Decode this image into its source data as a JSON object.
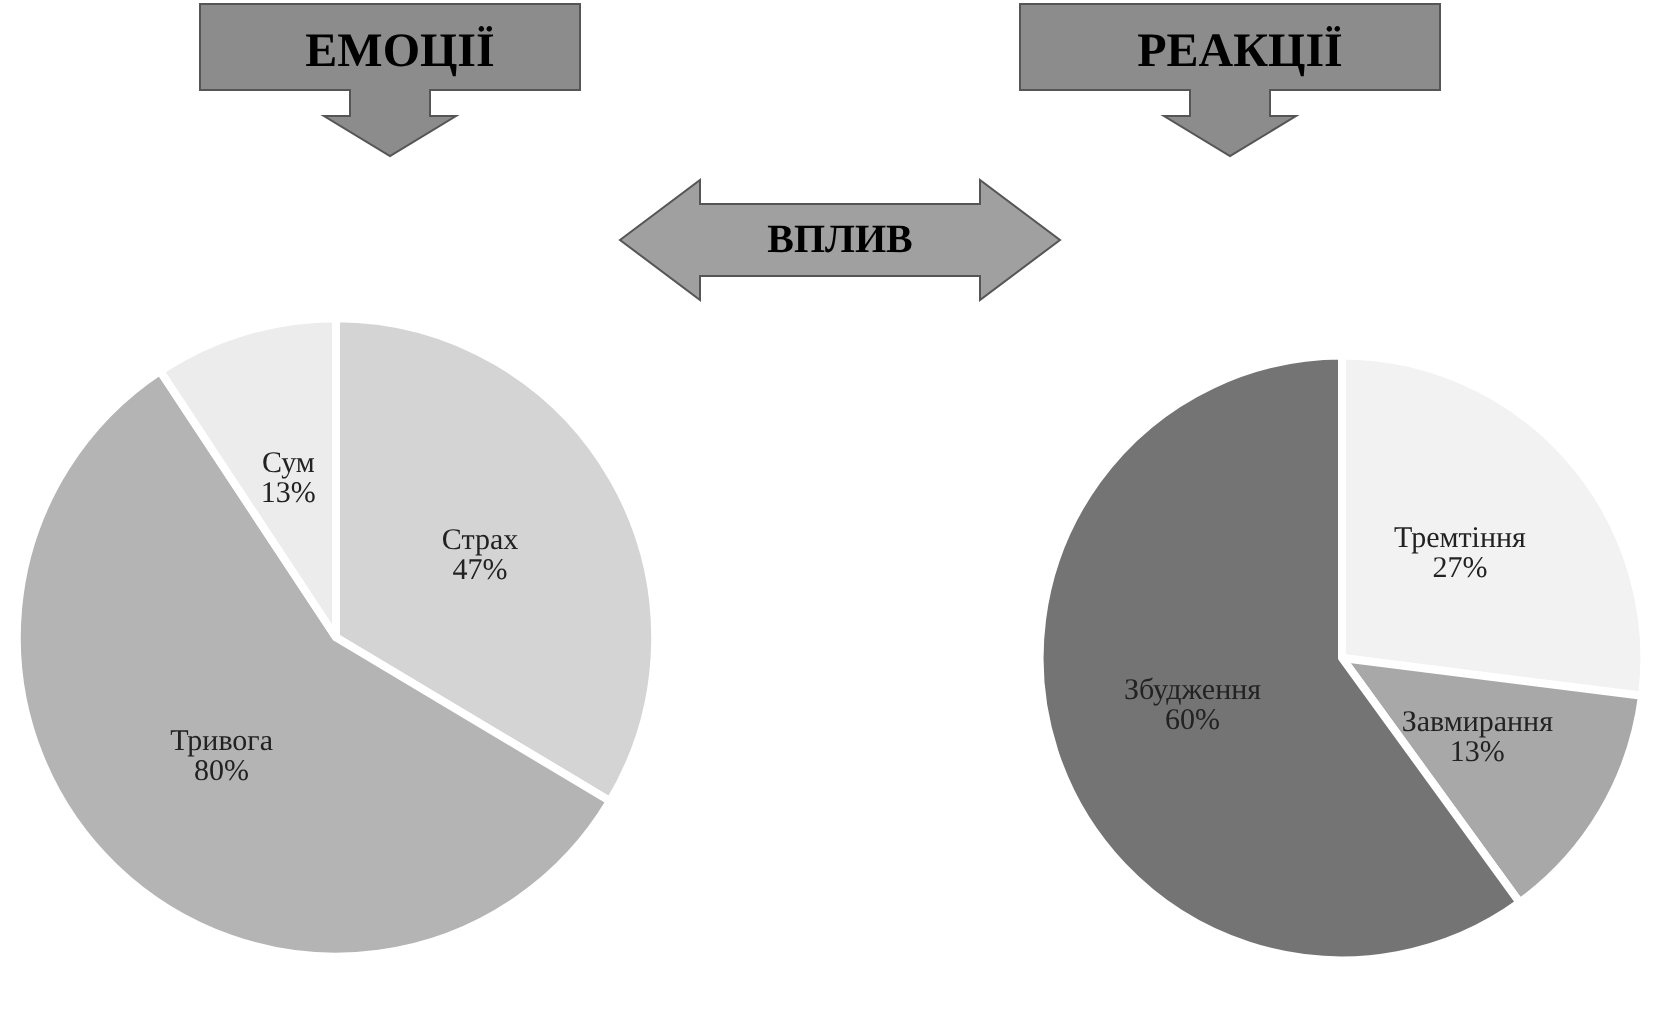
{
  "chart_data": [
    {
      "type": "pie",
      "title": "ЕМОЦІЇ",
      "categories": [
        "Страх",
        "Тривога",
        "Сум"
      ],
      "values": [
        47,
        80,
        13
      ],
      "value_labels": [
        "47%",
        "80%",
        "13%"
      ],
      "colors": [
        "#d4d4d4",
        "#b4b4b4",
        "#ececec"
      ],
      "annotations": [
        "ВПЛИВ"
      ]
    },
    {
      "type": "pie",
      "title": "РЕАКЦІЇ",
      "categories": [
        "Тремтіння",
        "Завмирання",
        "Збудження"
      ],
      "values": [
        27,
        13,
        60
      ],
      "value_labels": [
        "27%",
        "13%",
        "60%"
      ],
      "colors": [
        "#f2f2f2",
        "#a8a8a8",
        "#747474"
      ]
    }
  ]
}
